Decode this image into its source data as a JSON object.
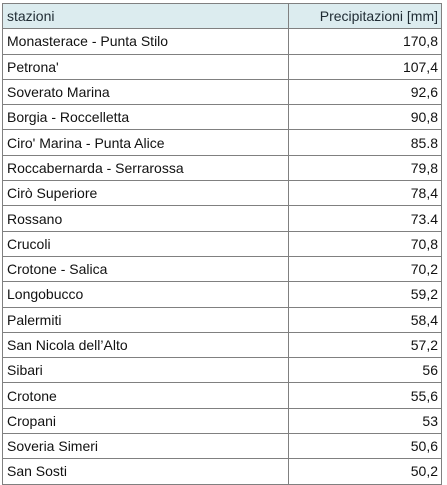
{
  "table": {
    "headers": {
      "station": "stazioni",
      "value": "Precipitazioni [mm]"
    },
    "rows": [
      {
        "station": "Monasterace - Punta Stilo",
        "value": "170,8"
      },
      {
        "station": "Petrona'",
        "value": "107,4"
      },
      {
        "station": "Soverato Marina",
        "value": "92,6"
      },
      {
        "station": "Borgia - Roccelletta",
        "value": "90,8"
      },
      {
        "station": "Ciro' Marina - Punta Alice",
        "value": "85.8"
      },
      {
        "station": "Roccabernarda - Serrarossa",
        "value": "79,8"
      },
      {
        "station": "Cirò Superiore",
        "value": "78,4"
      },
      {
        "station": "Rossano",
        "value": "73.4"
      },
      {
        "station": "Crucoli",
        "value": "70,8"
      },
      {
        "station": "Crotone - Salica",
        "value": "70,2"
      },
      {
        "station": "Longobucco",
        "value": "59,2"
      },
      {
        "station": "Palermiti",
        "value": "58,4"
      },
      {
        "station": "San Nicola dell’Alto",
        "value": "57,2"
      },
      {
        "station": "Sibari",
        "value": "56"
      },
      {
        "station": "Crotone",
        "value": "55,6"
      },
      {
        "station": "Cropani",
        "value": "53"
      },
      {
        "station": "Soveria Simeri",
        "value": "50,6"
      },
      {
        "station": "San Sosti",
        "value": "50,2"
      }
    ],
    "header_background": "#dcecef",
    "border_color": "#808080"
  }
}
